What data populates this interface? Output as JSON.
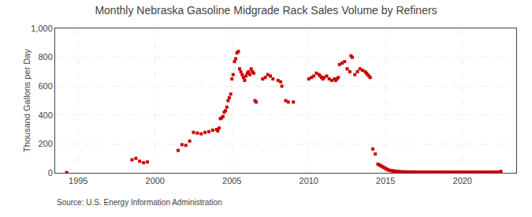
{
  "chart_data": {
    "type": "scatter",
    "title": "Monthly Nebraska Gasoline Midgrade Rack Sales Volume by Refiners",
    "ylabel": "Thousand Gallons per Day",
    "source": "Source: U.S. Energy Information Administration",
    "color": "#cc0000",
    "marker": "square",
    "grid": true,
    "xlim": [
      1993.5,
      2023.5
    ],
    "xticks": [
      1995,
      2000,
      2005,
      2010,
      2015,
      2020
    ],
    "ylim": [
      0,
      1000
    ],
    "yticks": [
      0,
      200,
      400,
      600,
      800,
      {
        "value": 1000,
        "label": "1,000"
      }
    ],
    "x": [
      1994.25,
      1998.5,
      1998.75,
      1999.0,
      1999.25,
      1999.5,
      2001.5,
      2001.75,
      2002.0,
      2002.25,
      2002.5,
      2002.75,
      2003.0,
      2003.25,
      2003.5,
      2003.75,
      2004.0,
      2004.08,
      2004.17,
      2004.25,
      2004.33,
      2004.42,
      2004.5,
      2004.58,
      2004.67,
      2004.75,
      2004.83,
      2004.92,
      2005.0,
      2005.08,
      2005.17,
      2005.25,
      2005.33,
      2005.42,
      2005.5,
      2005.58,
      2005.67,
      2005.75,
      2005.83,
      2005.92,
      2006.0,
      2006.08,
      2006.17,
      2006.25,
      2006.33,
      2006.42,
      2006.5,
      2006.58,
      2007.0,
      2007.17,
      2007.33,
      2007.5,
      2007.67,
      2008.0,
      2008.17,
      2008.25,
      2008.5,
      2008.67,
      2009.0,
      2010.0,
      2010.17,
      2010.33,
      2010.5,
      2010.67,
      2010.75,
      2010.83,
      2010.92,
      2011.0,
      2011.17,
      2011.33,
      2011.5,
      2011.67,
      2011.75,
      2011.83,
      2011.92,
      2012.0,
      2012.17,
      2012.33,
      2012.5,
      2012.67,
      2012.75,
      2012.83,
      2013.0,
      2013.17,
      2013.33,
      2013.5,
      2013.67,
      2013.75,
      2013.83,
      2013.92,
      2014.0,
      2014.17,
      2014.33,
      2014.5,
      2014.58,
      2014.67,
      2014.75,
      2014.83,
      2014.92,
      2015.0,
      2015.08,
      2015.17,
      2015.25,
      2015.33,
      2015.42,
      2015.5,
      2015.58,
      2015.67,
      2015.75,
      2015.83,
      2015.92,
      2016.0,
      2016.17,
      2016.33,
      2016.5,
      2016.67,
      2016.75,
      2016.83,
      2016.92,
      2017.0,
      2017.17,
      2017.33,
      2017.5,
      2017.67,
      2017.75,
      2017.83,
      2017.92,
      2018.0,
      2018.17,
      2018.33,
      2018.5,
      2018.67,
      2018.75,
      2018.83,
      2018.92,
      2019.0,
      2019.17,
      2019.33,
      2019.5,
      2019.67,
      2019.75,
      2019.83,
      2019.92,
      2020.0,
      2020.17,
      2020.33,
      2020.5,
      2020.67,
      2020.75,
      2020.83,
      2020.92,
      2021.0,
      2021.17,
      2021.33,
      2021.5,
      2021.67,
      2021.75,
      2021.83,
      2022.0,
      2022.17,
      2022.33,
      2022.5
    ],
    "values": [
      2,
      90,
      100,
      80,
      70,
      75,
      155,
      195,
      190,
      220,
      280,
      275,
      270,
      280,
      285,
      295,
      300,
      290,
      310,
      375,
      380,
      390,
      420,
      430,
      455,
      500,
      520,
      545,
      650,
      680,
      770,
      790,
      830,
      840,
      720,
      700,
      680,
      660,
      640,
      670,
      690,
      700,
      680,
      720,
      700,
      690,
      500,
      490,
      650,
      660,
      680,
      670,
      650,
      640,
      630,
      600,
      500,
      490,
      490,
      650,
      660,
      670,
      690,
      680,
      670,
      660,
      650,
      660,
      670,
      650,
      640,
      650,
      640,
      650,
      660,
      750,
      760,
      770,
      720,
      700,
      810,
      800,
      680,
      700,
      720,
      710,
      700,
      690,
      680,
      670,
      660,
      165,
      130,
      60,
      55,
      50,
      45,
      40,
      35,
      30,
      25,
      20,
      18,
      15,
      14,
      13,
      12,
      11,
      10,
      9,
      8,
      7,
      7,
      7,
      6,
      6,
      6,
      6,
      5,
      5,
      5,
      5,
      5,
      5,
      5,
      5,
      5,
      5,
      5,
      5,
      5,
      5,
      5,
      5,
      5,
      5,
      5,
      5,
      5,
      5,
      5,
      5,
      5,
      5,
      5,
      5,
      5,
      5,
      5,
      5,
      5,
      5,
      5,
      5,
      5,
      5,
      5,
      5,
      5,
      5,
      5,
      10
    ]
  }
}
